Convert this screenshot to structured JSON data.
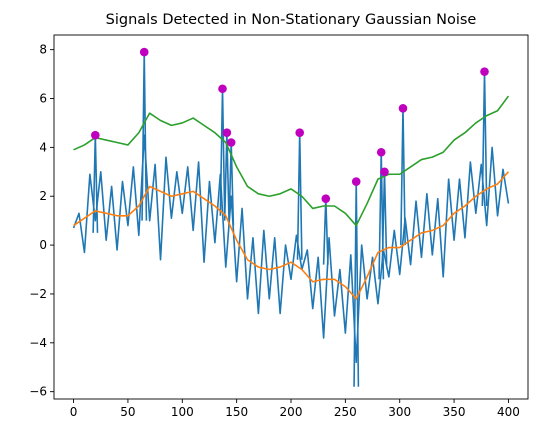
{
  "chart_data": {
    "type": "line",
    "title": "Signals Detected in Non-Stationary Gaussian Noise",
    "xlabel": "",
    "ylabel": "",
    "xlim": [
      -18,
      418
    ],
    "ylim": [
      -6.3,
      8.6
    ],
    "xticks": [
      0,
      50,
      100,
      150,
      200,
      250,
      300,
      350,
      400
    ],
    "yticks": [
      -6,
      -4,
      -2,
      0,
      2,
      4,
      6,
      8
    ],
    "grid": false,
    "legend": "none",
    "series": [
      {
        "color": "#1f77b4",
        "kind": "noisy-line",
        "x": [
          0,
          5,
          10,
          15,
          20,
          25,
          30,
          35,
          40,
          45,
          50,
          55,
          60,
          65,
          70,
          75,
          80,
          85,
          90,
          95,
          100,
          105,
          110,
          115,
          120,
          125,
          130,
          135,
          140,
          145,
          150,
          155,
          160,
          165,
          170,
          175,
          180,
          185,
          190,
          195,
          200,
          205,
          210,
          215,
          220,
          225,
          230,
          235,
          240,
          245,
          250,
          255,
          260,
          265,
          270,
          275,
          280,
          285,
          290,
          295,
          300,
          305,
          310,
          315,
          320,
          325,
          330,
          335,
          340,
          345,
          350,
          355,
          360,
          365,
          370,
          375,
          380,
          385,
          390,
          395,
          400
        ],
        "y": [
          0.7,
          1.3,
          -0.3,
          2.9,
          1.0,
          3.0,
          0.2,
          2.4,
          -0.2,
          2.6,
          0.8,
          3.2,
          0.4,
          4.5,
          1.0,
          3.3,
          -0.6,
          3.6,
          1.1,
          3.0,
          1.3,
          3.2,
          0.6,
          3.4,
          -0.7,
          2.6,
          0.1,
          2.9,
          -0.9,
          2.0,
          -1.5,
          1.5,
          -2.2,
          0.3,
          -2.8,
          0.6,
          -2.2,
          0.3,
          -2.8,
          0.0,
          -1.4,
          0.4,
          -1.0,
          -0.2,
          -2.6,
          -0.5,
          -3.8,
          0.3,
          -2.9,
          -1.0,
          -3.6,
          -0.4,
          -4.8,
          0.0,
          -2.2,
          -0.5,
          -2.4,
          -0.2,
          -1.3,
          0.6,
          -1.2,
          1.1,
          -0.8,
          1.8,
          -0.5,
          2.1,
          -0.4,
          1.9,
          -1.3,
          2.7,
          0.2,
          2.7,
          0.3,
          3.4,
          1.3,
          3.3,
          0.8,
          4.0,
          1.2,
          3.1,
          1.7
        ]
      },
      {
        "color": "#1f77b4",
        "kind": "spikes",
        "x": [
          20,
          65,
          137,
          141,
          145,
          208,
          232,
          260,
          283,
          286,
          303,
          378
        ],
        "y": [
          4.5,
          7.9,
          6.4,
          4.6,
          4.2,
          4.6,
          1.9,
          2.6,
          3.8,
          3.0,
          5.6,
          7.1
        ],
        "lows": [
          0.5,
          1.0,
          1.2,
          1.0,
          0.8,
          -0.6,
          -0.8,
          -5.8,
          -1.4,
          -0.8,
          0.0,
          1.6
        ]
      },
      {
        "color": "#ff7f0e",
        "kind": "line",
        "x": [
          0,
          10,
          20,
          30,
          40,
          50,
          60,
          70,
          80,
          90,
          100,
          110,
          120,
          130,
          140,
          150,
          160,
          170,
          180,
          190,
          200,
          210,
          220,
          230,
          240,
          250,
          260,
          270,
          280,
          290,
          300,
          310,
          320,
          330,
          340,
          350,
          360,
          370,
          380,
          390,
          400
        ],
        "y": [
          0.8,
          1.1,
          1.4,
          1.3,
          1.2,
          1.2,
          1.6,
          2.4,
          2.2,
          2.0,
          2.1,
          2.2,
          1.9,
          1.6,
          1.2,
          0.2,
          -0.6,
          -0.9,
          -1.0,
          -0.9,
          -0.7,
          -1.0,
          -1.5,
          -1.4,
          -1.4,
          -1.7,
          -2.2,
          -1.3,
          -0.3,
          -0.1,
          -0.1,
          0.2,
          0.5,
          0.6,
          0.8,
          1.3,
          1.6,
          2.0,
          2.3,
          2.5,
          3.0
        ]
      },
      {
        "color": "#2ca02c",
        "kind": "line",
        "x": [
          0,
          10,
          20,
          30,
          40,
          50,
          60,
          70,
          80,
          90,
          100,
          110,
          120,
          130,
          140,
          150,
          160,
          170,
          180,
          190,
          200,
          210,
          220,
          230,
          240,
          250,
          260,
          270,
          280,
          290,
          300,
          310,
          320,
          330,
          340,
          350,
          360,
          370,
          380,
          390,
          400
        ],
        "y": [
          3.9,
          4.1,
          4.4,
          4.3,
          4.2,
          4.1,
          4.6,
          5.4,
          5.1,
          4.9,
          5.0,
          5.2,
          4.9,
          4.6,
          4.2,
          3.2,
          2.4,
          2.1,
          2.0,
          2.1,
          2.3,
          2.0,
          1.5,
          1.6,
          1.6,
          1.3,
          0.8,
          1.7,
          2.7,
          2.9,
          2.9,
          3.2,
          3.5,
          3.6,
          3.8,
          4.3,
          4.6,
          5.0,
          5.3,
          5.5,
          6.1
        ]
      },
      {
        "color": "#bf00bf",
        "kind": "markers",
        "x": [
          20,
          65,
          137,
          141,
          145,
          208,
          232,
          260,
          283,
          286,
          303,
          378
        ],
        "y": [
          4.5,
          7.9,
          6.4,
          4.6,
          4.2,
          4.6,
          1.9,
          2.6,
          3.8,
          3.0,
          5.6,
          7.1
        ]
      }
    ]
  }
}
